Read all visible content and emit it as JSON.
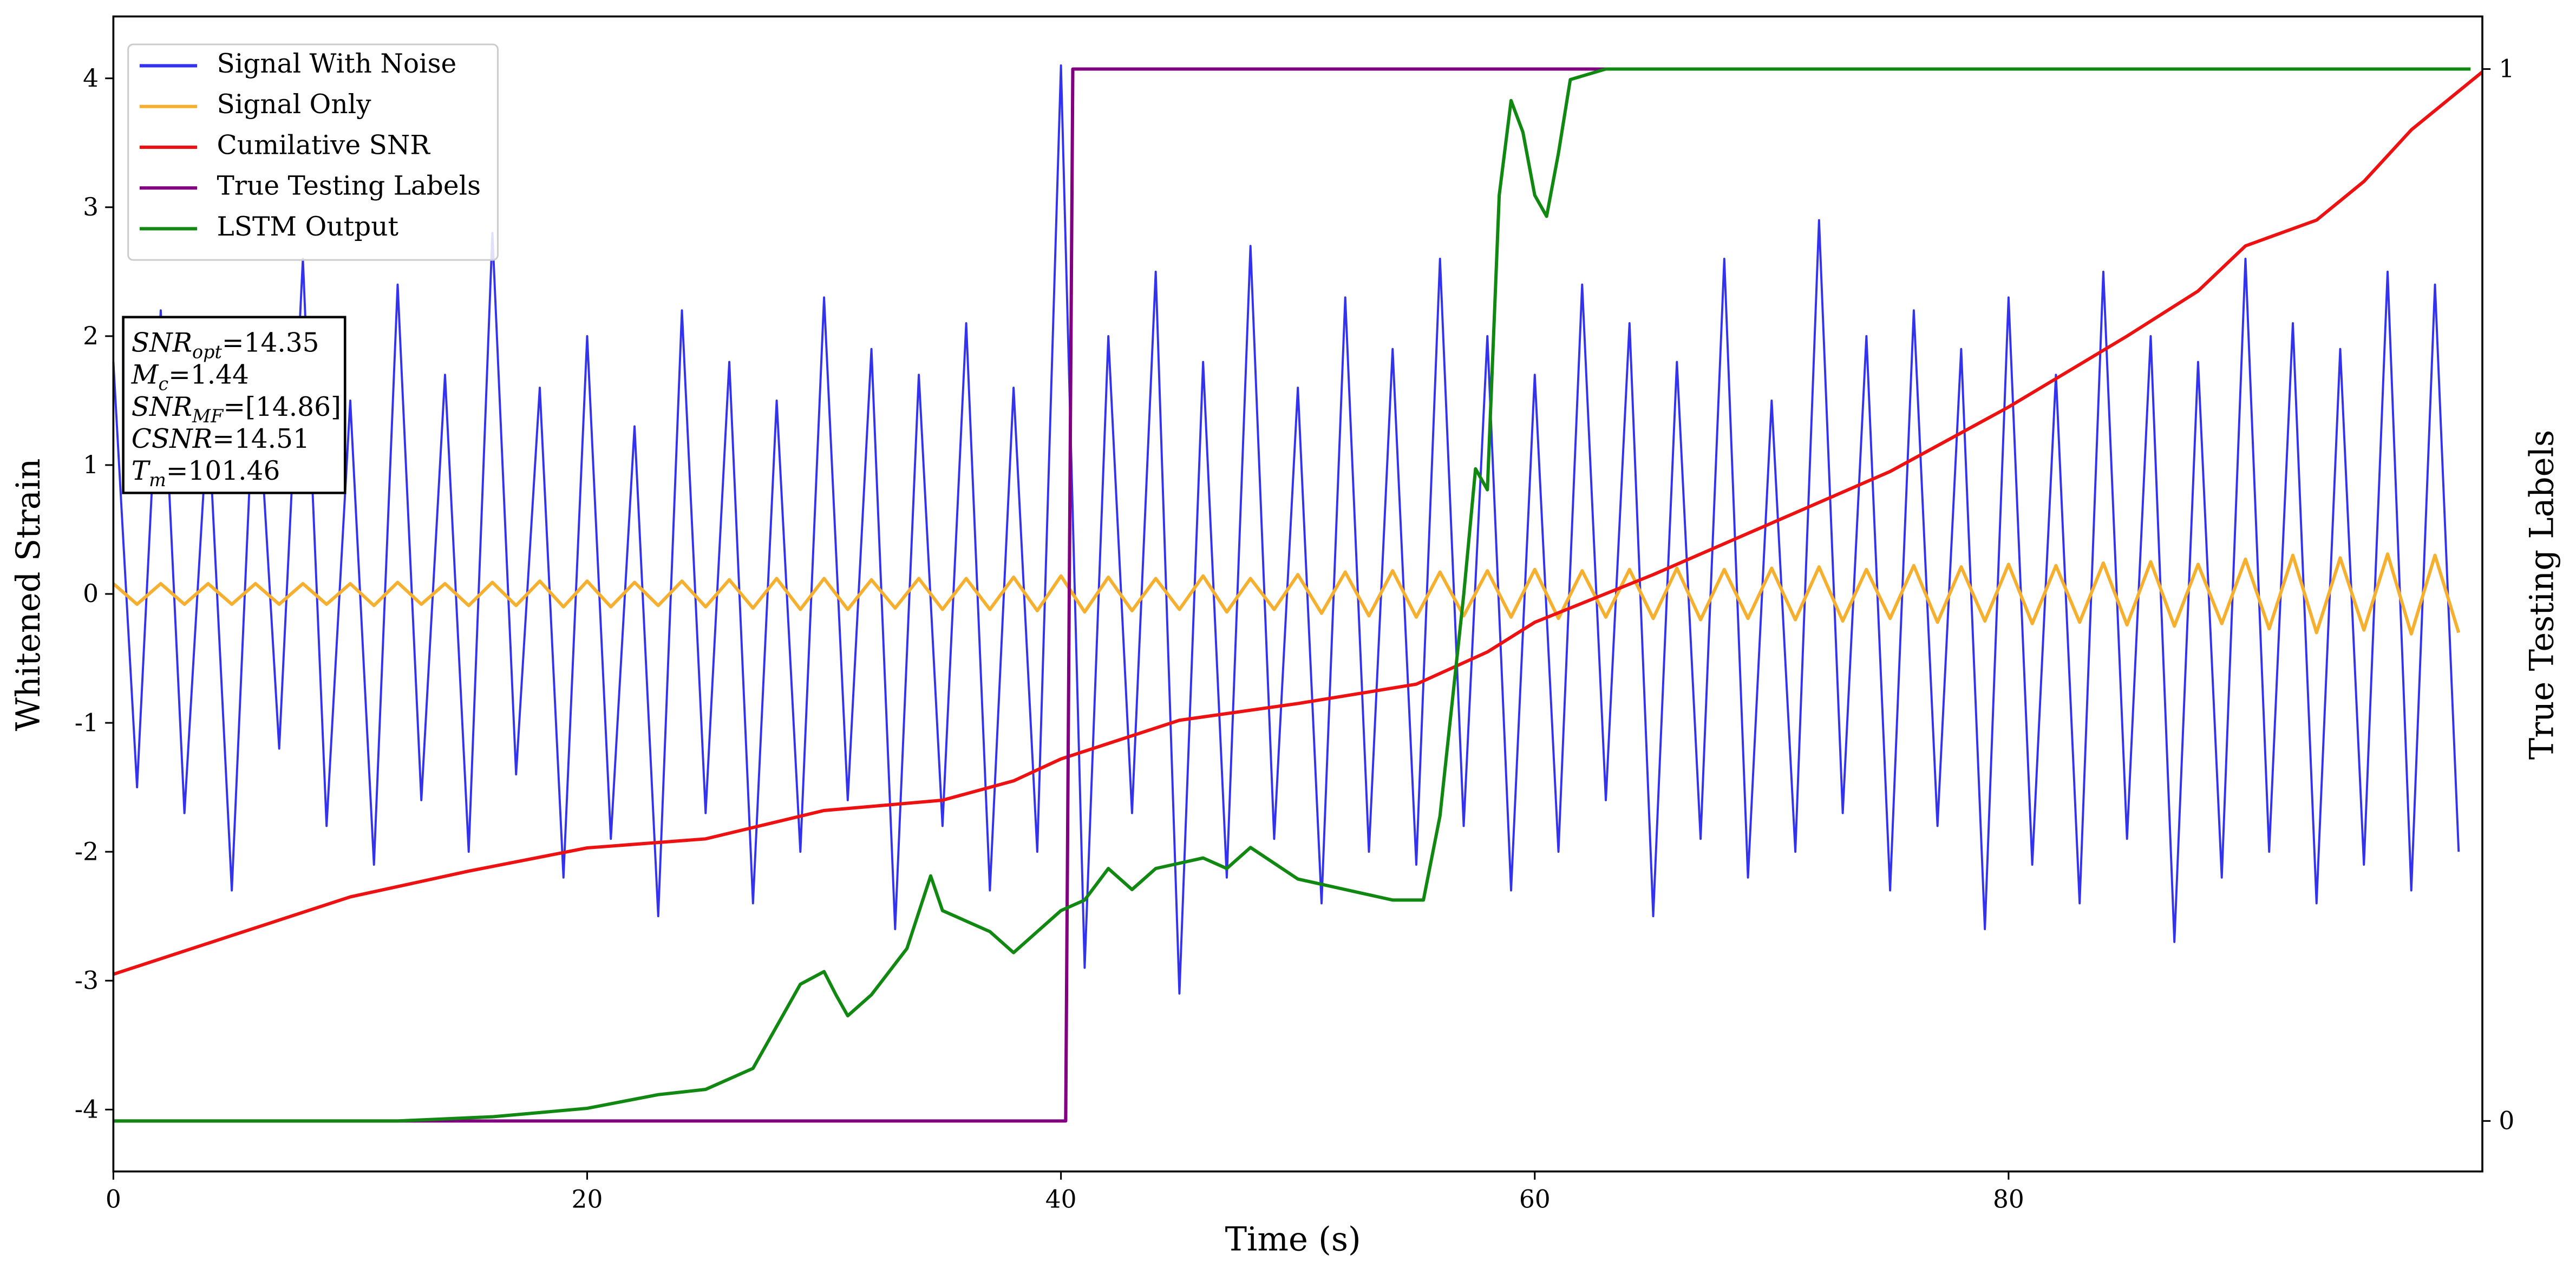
{
  "chart_data": {
    "type": "line",
    "xlabel": "Time (s)",
    "ylabel": "Whitened Strain",
    "y2label": "True Testing Labels",
    "xlim": [
      0,
      100
    ],
    "xticks": [
      0,
      20,
      40,
      60,
      80
    ],
    "ylim": [
      -4.48,
      4.48
    ],
    "yticks": [
      -4,
      -3,
      -2,
      -1,
      0,
      1,
      2,
      3,
      4
    ],
    "y2lim": [
      -0.048,
      1.05
    ],
    "y2ticks": [
      0,
      1
    ],
    "legend": "upper left",
    "annotations": [
      {
        "main": "SNR",
        "sub": "opt",
        "rest": "=14.35"
      },
      {
        "main": "M",
        "sub": "c",
        "rest": "=1.44"
      },
      {
        "main": "SNR",
        "sub": "MF",
        "rest": "=[14.86]"
      },
      {
        "main": "CSNR",
        "sub": "",
        "rest": "=14.51"
      },
      {
        "main": "T",
        "sub": "m",
        "rest": "=101.46"
      }
    ],
    "series": [
      {
        "name": "Signal With Noise",
        "color": "#3333ee",
        "axis": "y",
        "x": [
          0,
          1,
          2,
          3,
          4,
          5,
          6,
          7,
          8,
          9,
          10,
          11,
          12,
          13,
          14,
          15,
          16,
          17,
          18,
          19,
          20,
          21,
          22,
          23,
          24,
          25,
          26,
          27,
          28,
          29,
          30,
          31,
          32,
          33,
          34,
          35,
          36,
          37,
          38,
          39,
          40,
          41,
          42,
          43,
          44,
          45,
          46,
          47,
          48,
          49,
          50,
          51,
          52,
          53,
          54,
          55,
          56,
          57,
          58,
          59,
          60,
          61,
          62,
          63,
          64,
          65,
          66,
          67,
          68,
          69,
          70,
          71,
          72,
          73,
          74,
          75,
          76,
          77,
          78,
          79,
          80,
          81,
          82,
          83,
          84,
          85,
          86,
          87,
          88,
          89,
          90,
          91,
          92,
          93,
          94,
          95,
          96,
          97,
          98,
          99
        ],
        "values": [
          1.8,
          -1.5,
          2.2,
          -1.7,
          1.4,
          -2.3,
          1.9,
          -1.2,
          2.6,
          -1.8,
          1.5,
          -2.1,
          2.4,
          -1.6,
          1.7,
          -2.0,
          2.8,
          -1.4,
          1.6,
          -2.2,
          2.0,
          -1.9,
          1.3,
          -2.5,
          2.2,
          -1.7,
          1.8,
          -2.4,
          1.5,
          -2.0,
          2.3,
          -1.6,
          1.9,
          -2.6,
          1.7,
          -1.8,
          2.1,
          -2.3,
          1.6,
          -2.0,
          4.1,
          -2.9,
          2.0,
          -1.7,
          2.5,
          -3.1,
          1.8,
          -2.2,
          2.7,
          -1.9,
          1.6,
          -2.4,
          2.3,
          -2.0,
          1.9,
          -2.1,
          2.6,
          -1.8,
          2.0,
          -2.3,
          1.7,
          -2.0,
          2.4,
          -1.6,
          2.1,
          -2.5,
          1.8,
          -1.9,
          2.6,
          -2.2,
          1.5,
          -2.0,
          2.9,
          -1.7,
          2.0,
          -2.3,
          2.2,
          -1.8,
          1.9,
          -2.6,
          2.3,
          -2.1,
          1.7,
          -2.4,
          2.5,
          -1.9,
          2.0,
          -2.7,
          1.8,
          -2.2,
          2.6,
          -2.0,
          2.1,
          -2.4,
          1.9,
          -2.1,
          2.5,
          -2.3,
          2.4,
          -2.0
        ]
      },
      {
        "name": "Signal Only",
        "color": "#f5b030",
        "axis": "y",
        "x": [
          0,
          1,
          2,
          3,
          4,
          5,
          6,
          7,
          8,
          9,
          10,
          11,
          12,
          13,
          14,
          15,
          16,
          17,
          18,
          19,
          20,
          21,
          22,
          23,
          24,
          25,
          26,
          27,
          28,
          29,
          30,
          31,
          32,
          33,
          34,
          35,
          36,
          37,
          38,
          39,
          40,
          41,
          42,
          43,
          44,
          45,
          46,
          47,
          48,
          49,
          50,
          51,
          52,
          53,
          54,
          55,
          56,
          57,
          58,
          59,
          60,
          61,
          62,
          63,
          64,
          65,
          66,
          67,
          68,
          69,
          70,
          71,
          72,
          73,
          74,
          75,
          76,
          77,
          78,
          79,
          80,
          81,
          82,
          83,
          84,
          85,
          86,
          87,
          88,
          89,
          90,
          91,
          92,
          93,
          94,
          95,
          96,
          97,
          98,
          99
        ],
        "values": [
          0.08,
          -0.08,
          0.08,
          -0.08,
          0.08,
          -0.08,
          0.08,
          -0.08,
          0.08,
          -0.08,
          0.08,
          -0.09,
          0.09,
          -0.08,
          0.08,
          -0.09,
          0.09,
          -0.09,
          0.1,
          -0.1,
          0.1,
          -0.1,
          0.09,
          -0.09,
          0.1,
          -0.1,
          0.11,
          -0.11,
          0.12,
          -0.12,
          0.12,
          -0.12,
          0.11,
          -0.11,
          0.12,
          -0.12,
          0.12,
          -0.12,
          0.13,
          -0.13,
          0.14,
          -0.14,
          0.13,
          -0.13,
          0.12,
          -0.12,
          0.14,
          -0.14,
          0.12,
          -0.12,
          0.15,
          -0.15,
          0.17,
          -0.17,
          0.18,
          -0.18,
          0.17,
          -0.17,
          0.18,
          -0.18,
          0.19,
          -0.19,
          0.18,
          -0.18,
          0.19,
          -0.19,
          0.2,
          -0.2,
          0.19,
          -0.19,
          0.2,
          -0.2,
          0.21,
          -0.21,
          0.19,
          -0.19,
          0.22,
          -0.22,
          0.21,
          -0.21,
          0.23,
          -0.23,
          0.22,
          -0.22,
          0.24,
          -0.24,
          0.25,
          -0.25,
          0.23,
          -0.23,
          0.27,
          -0.27,
          0.3,
          -0.3,
          0.28,
          -0.28,
          0.31,
          -0.31,
          0.3,
          -0.3
        ]
      },
      {
        "name": "Cumilative SNR",
        "color": "#ee1111",
        "axis": "y",
        "x": [
          0,
          5,
          10,
          15,
          20,
          25,
          30,
          35,
          38,
          40,
          43,
          45,
          50,
          55,
          58,
          60,
          65,
          70,
          75,
          80,
          85,
          88,
          90,
          93,
          95,
          97,
          100
        ],
        "values": [
          -2.95,
          -2.65,
          -2.35,
          -2.15,
          -1.97,
          -1.9,
          -1.68,
          -1.6,
          -1.45,
          -1.28,
          -1.1,
          -0.98,
          -0.85,
          -0.7,
          -0.45,
          -0.22,
          0.15,
          0.55,
          0.95,
          1.45,
          2.0,
          2.35,
          2.7,
          2.9,
          3.2,
          3.6,
          4.05
        ]
      },
      {
        "name": "True Testing Labels",
        "color": "#800080",
        "axis": "y2",
        "x": [
          0,
          40.2,
          40.5,
          99.5
        ],
        "values": [
          0,
          0,
          1,
          1
        ]
      },
      {
        "name": "LSTM Output",
        "color": "#118811",
        "axis": "y2",
        "x": [
          0,
          12,
          16,
          20,
          23,
          25,
          27,
          28,
          29,
          30,
          30.5,
          31,
          32,
          33.5,
          34.5,
          35,
          36,
          37,
          38,
          39,
          40,
          41,
          42,
          43,
          44,
          46,
          47,
          48,
          50,
          52,
          54,
          55.3,
          56,
          57,
          57.5,
          58,
          58.5,
          59,
          59.5,
          60,
          60.5,
          61,
          61.5,
          63,
          66,
          99.5
        ],
        "values": [
          0,
          0,
          0.004,
          0.012,
          0.025,
          0.03,
          0.05,
          0.09,
          0.13,
          0.142,
          0.12,
          0.1,
          0.12,
          0.164,
          0.233,
          0.2,
          0.19,
          0.18,
          0.16,
          0.18,
          0.2,
          0.21,
          0.24,
          0.22,
          0.24,
          0.25,
          0.24,
          0.26,
          0.23,
          0.22,
          0.21,
          0.21,
          0.29,
          0.5,
          0.62,
          0.6,
          0.88,
          0.97,
          0.94,
          0.88,
          0.86,
          0.92,
          0.99,
          1.0,
          1.0,
          1.0
        ]
      }
    ]
  }
}
